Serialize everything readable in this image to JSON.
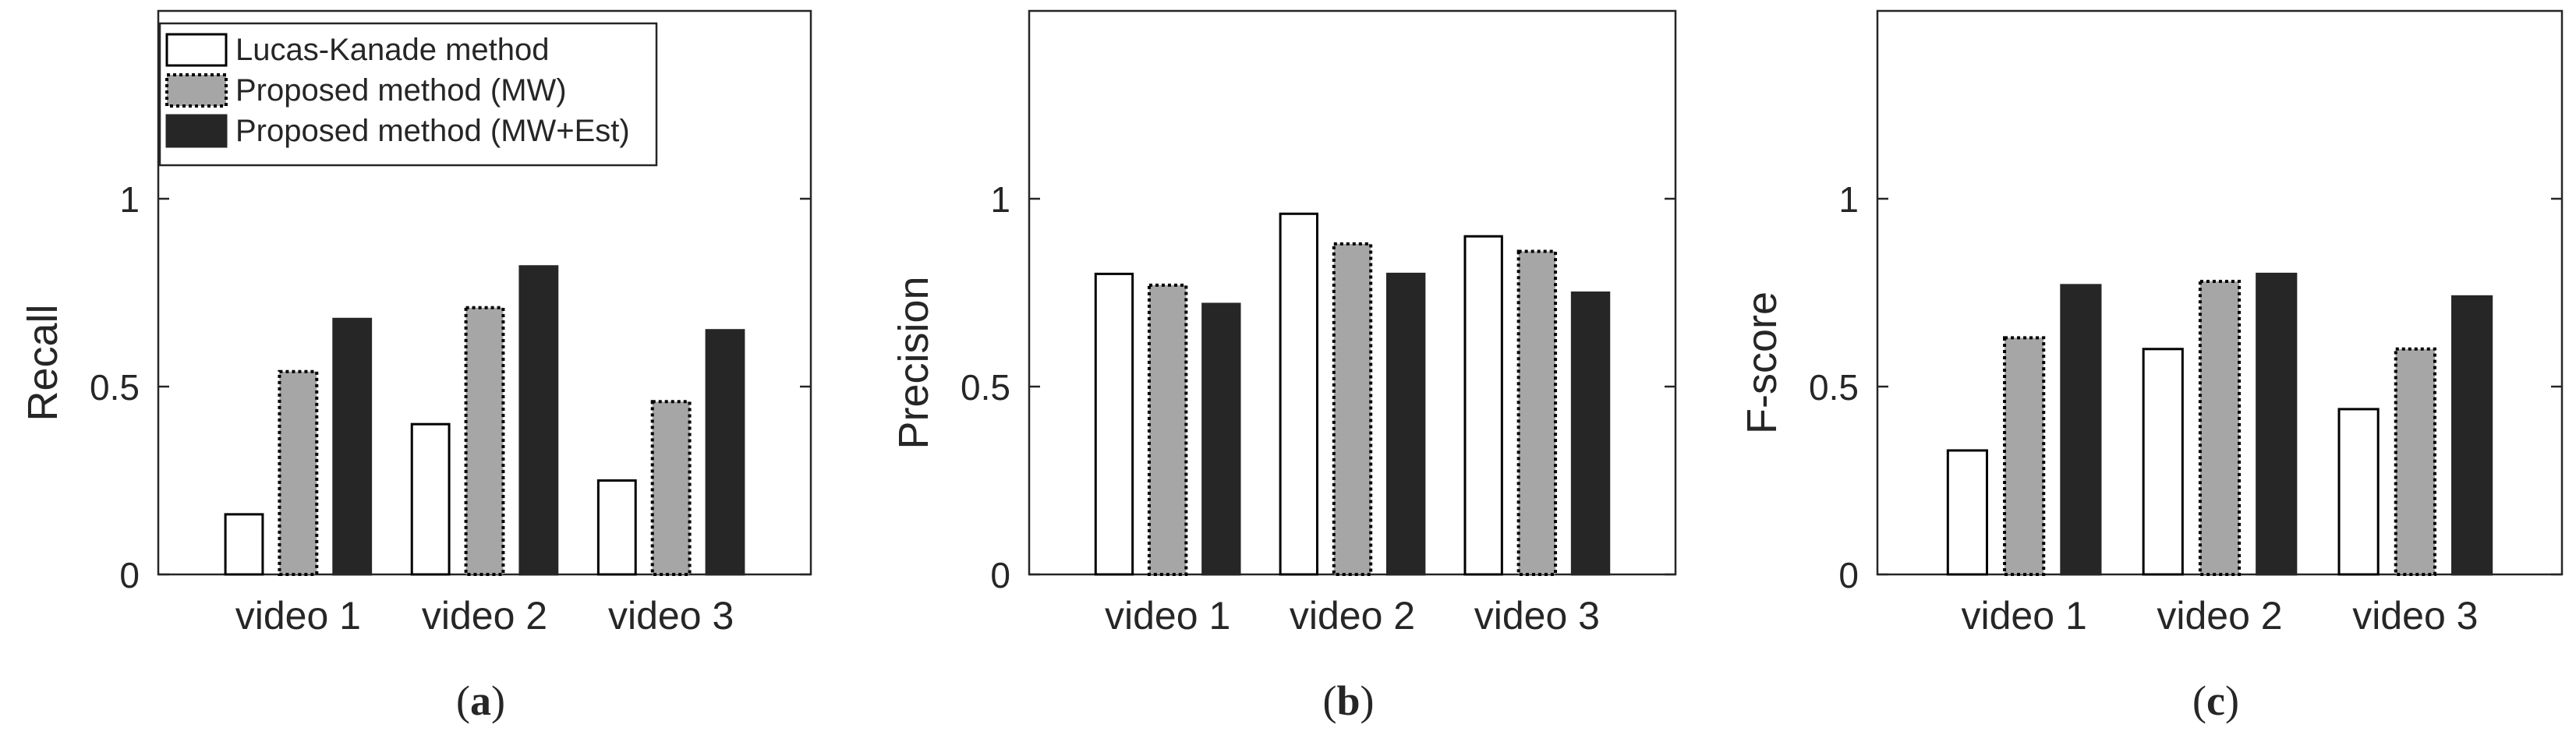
{
  "figure": {
    "legend": {
      "placement": "top-left inside panel (a)",
      "entries": [
        "Lucas-Kanade method",
        "Proposed method (MW)",
        "Proposed method (MW+Est)"
      ]
    },
    "series_styles": [
      {
        "fill": "#ffffff",
        "stroke": "#000000",
        "dashed": false
      },
      {
        "fill": "#a6a6a6",
        "stroke": "#000000",
        "dashed": true
      },
      {
        "fill": "#262626",
        "stroke": "#262626",
        "dashed": false
      }
    ]
  },
  "chart_data": [
    {
      "type": "bar",
      "caption_letter": "a",
      "categories": [
        "video 1",
        "video 2",
        "video 3"
      ],
      "ylabel": "Recall",
      "ylim": [
        0,
        1.5
      ],
      "yticks": [
        0,
        0.5,
        1
      ],
      "ytick_labels": [
        "0",
        "0.5",
        "1"
      ],
      "grid": false,
      "series": [
        {
          "name": "Lucas-Kanade method",
          "values": [
            0.16,
            0.4,
            0.25
          ]
        },
        {
          "name": "Proposed method (MW)",
          "values": [
            0.54,
            0.71,
            0.46
          ]
        },
        {
          "name": "Proposed method (MW+Est)",
          "values": [
            0.68,
            0.82,
            0.65
          ]
        }
      ]
    },
    {
      "type": "bar",
      "caption_letter": "b",
      "categories": [
        "video 1",
        "video 2",
        "video 3"
      ],
      "ylabel": "Precision",
      "ylim": [
        0,
        1.5
      ],
      "yticks": [
        0,
        0.5,
        1
      ],
      "ytick_labels": [
        "0",
        "0.5",
        "1"
      ],
      "grid": false,
      "series": [
        {
          "name": "Lucas-Kanade method",
          "values": [
            0.8,
            0.96,
            0.9
          ]
        },
        {
          "name": "Proposed method (MW)",
          "values": [
            0.77,
            0.88,
            0.86
          ]
        },
        {
          "name": "Proposed method (MW+Est)",
          "values": [
            0.72,
            0.8,
            0.75
          ]
        }
      ]
    },
    {
      "type": "bar",
      "caption_letter": "c",
      "categories": [
        "video 1",
        "video 2",
        "video 3"
      ],
      "ylabel": "F-score",
      "ylim": [
        0,
        1.5
      ],
      "yticks": [
        0,
        0.5,
        1
      ],
      "ytick_labels": [
        "0",
        "0.5",
        "1"
      ],
      "grid": false,
      "series": [
        {
          "name": "Lucas-Kanade method",
          "values": [
            0.33,
            0.6,
            0.44
          ]
        },
        {
          "name": "Proposed method (MW)",
          "values": [
            0.63,
            0.78,
            0.6
          ]
        },
        {
          "name": "Proposed method (MW+Est)",
          "values": [
            0.77,
            0.8,
            0.74
          ]
        }
      ]
    }
  ]
}
